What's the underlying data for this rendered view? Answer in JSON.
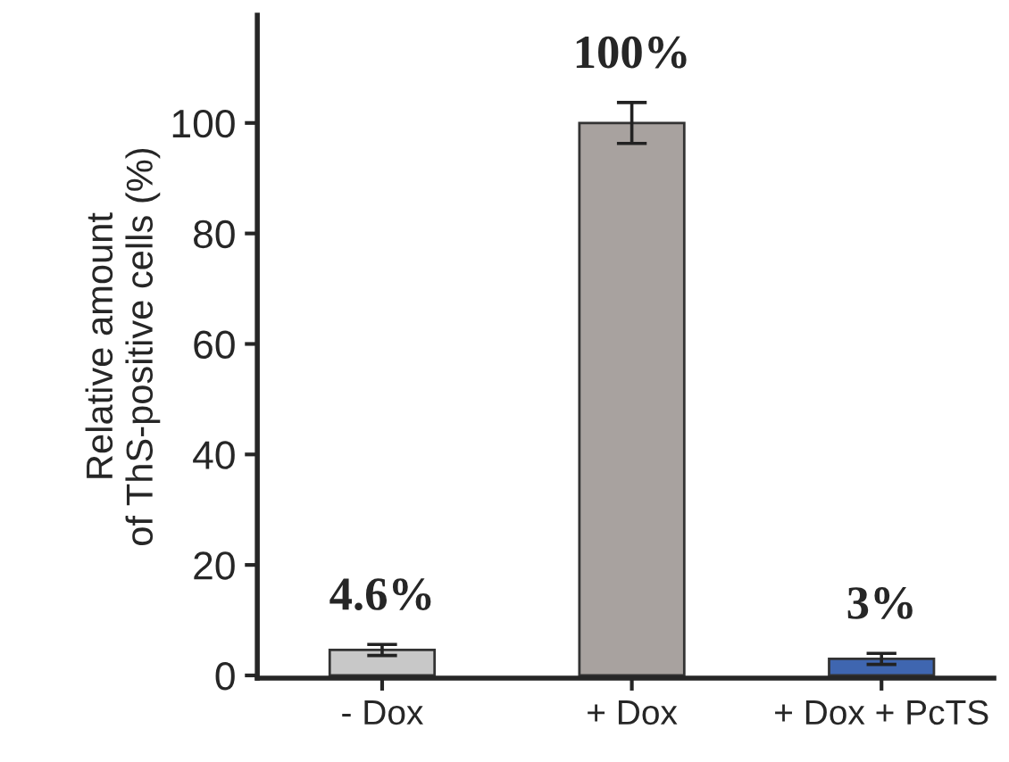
{
  "chart_data": {
    "type": "bar",
    "ylabel": "Relative amount\nof ThS-positive cells (%)",
    "categories": [
      "- Dox",
      "+ Dox",
      "+ Dox + PcTS"
    ],
    "values": [
      4.6,
      100,
      3
    ],
    "errors": [
      1.0,
      3.7,
      1.0
    ],
    "colors": [
      "#c8c8c8",
      "#a8a29f",
      "#3f66b0"
    ],
    "value_labels": [
      "4.6%",
      "100%",
      "3%"
    ],
    "ylim": [
      -0.5,
      119.5
    ],
    "yticks": [
      0,
      20,
      40,
      60,
      80,
      100
    ],
    "grid": false
  }
}
